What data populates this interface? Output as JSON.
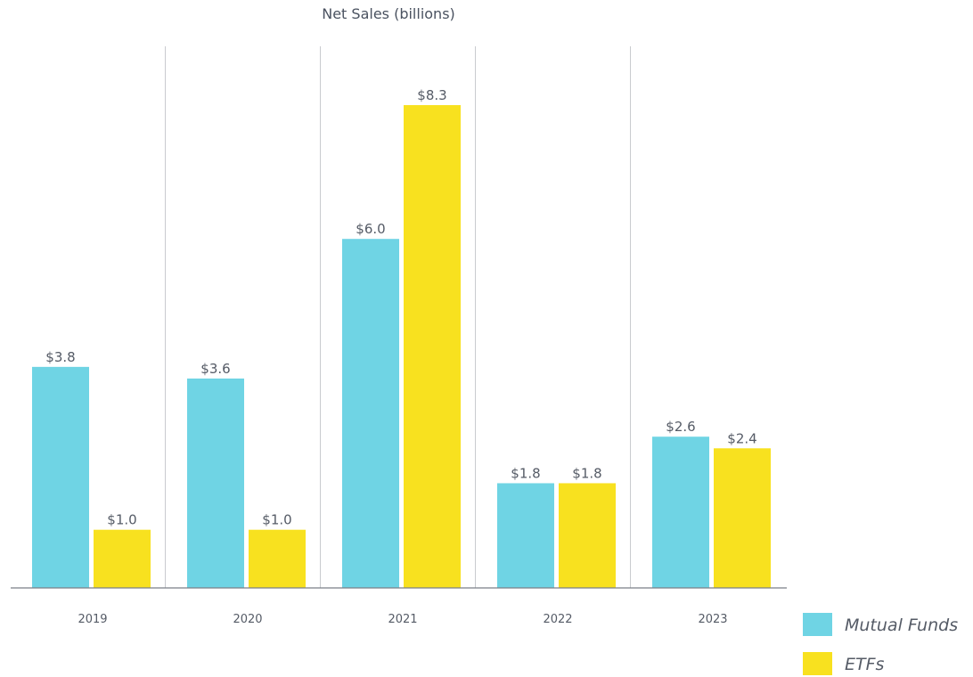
{
  "chart_data": {
    "type": "bar",
    "title": "Net Sales (billions)",
    "categories": [
      "2019",
      "2020",
      "2021",
      "2022",
      "2023"
    ],
    "series": [
      {
        "name": "Mutual Funds",
        "color": "#6fd4e4",
        "values": [
          3.8,
          3.6,
          6.0,
          1.8,
          2.6
        ],
        "labels": [
          "$3.8",
          "$3.6",
          "$6.0",
          "$1.8",
          "$2.6"
        ]
      },
      {
        "name": "ETFs",
        "color": "#f8e11f",
        "values": [
          1.0,
          1.0,
          8.3,
          1.8,
          2.4
        ],
        "labels": [
          "$1.0",
          "$1.0",
          "$8.3",
          "$1.8",
          "$2.4"
        ]
      }
    ],
    "ylim": [
      0,
      9
    ],
    "grid": "vertical separators",
    "legend": "bottom-right",
    "xlabel": "",
    "ylabel": ""
  }
}
